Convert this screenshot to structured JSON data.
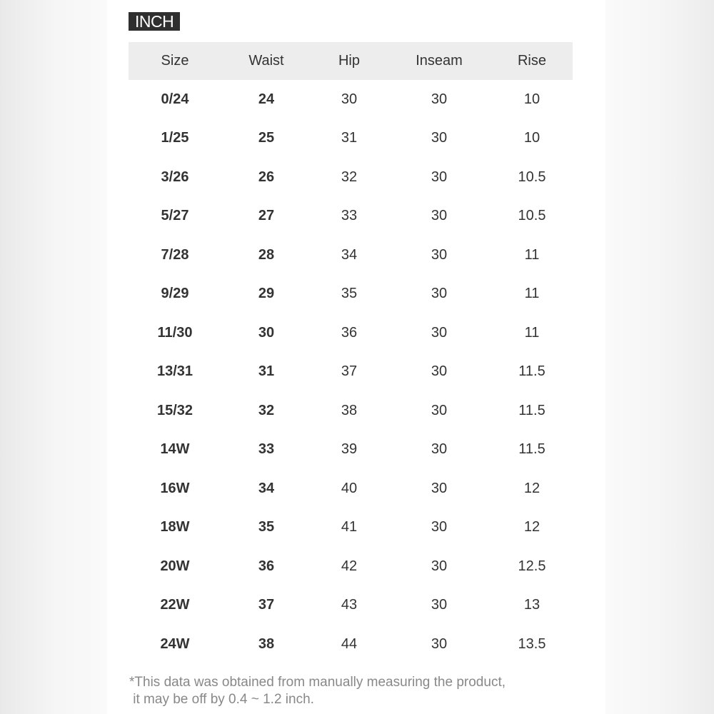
{
  "unit_label": "INCH",
  "columns": [
    "Size",
    "Waist",
    "Hip",
    "Inseam",
    "Rise"
  ],
  "rows": [
    [
      "0/24",
      "24",
      "30",
      "30",
      "10"
    ],
    [
      "1/25",
      "25",
      "31",
      "30",
      "10"
    ],
    [
      "3/26",
      "26",
      "32",
      "30",
      "10.5"
    ],
    [
      "5/27",
      "27",
      "33",
      "30",
      "10.5"
    ],
    [
      "7/28",
      "28",
      "34",
      "30",
      "11"
    ],
    [
      "9/29",
      "29",
      "35",
      "30",
      "11"
    ],
    [
      "11/30",
      "30",
      "36",
      "30",
      "11"
    ],
    [
      "13/31",
      "31",
      "37",
      "30",
      "11.5"
    ],
    [
      "15/32",
      "32",
      "38",
      "30",
      "11.5"
    ],
    [
      "14W",
      "33",
      "39",
      "30",
      "11.5"
    ],
    [
      "16W",
      "34",
      "40",
      "30",
      "12"
    ],
    [
      "18W",
      "35",
      "41",
      "30",
      "12"
    ],
    [
      "20W",
      "36",
      "42",
      "30",
      "12.5"
    ],
    [
      "22W",
      "37",
      "43",
      "30",
      "13"
    ],
    [
      "24W",
      "38",
      "44",
      "30",
      "13.5"
    ]
  ],
  "footnote": [
    "*This data was obtained from manually measuring the product,",
    " it may be off by 0.4 ~ 1.2 inch."
  ]
}
